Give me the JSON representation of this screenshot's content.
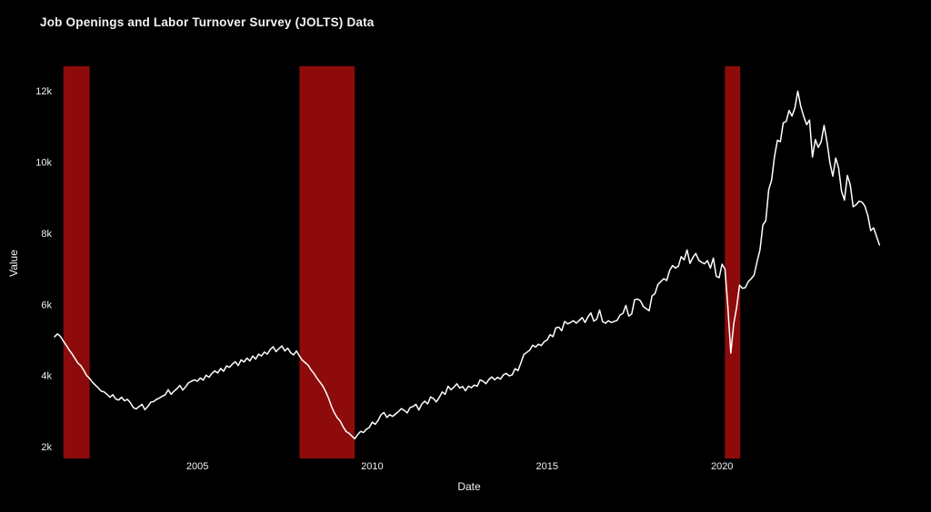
{
  "page": {
    "background": "#000000"
  },
  "chart_data": {
    "type": "line",
    "title": "Job Openings and Labor Turnover Survey (JOLTS) Data",
    "xlabel": "Date",
    "ylabel": "Value",
    "grid": false,
    "legend": false,
    "x_range": [
      2000.917,
      2024.96
    ],
    "y_range": [
      1670,
      12690
    ],
    "x_ticks": [
      {
        "value": 2005,
        "label": "2005"
      },
      {
        "value": 2010,
        "label": "2010"
      },
      {
        "value": 2015,
        "label": "2015"
      },
      {
        "value": 2020,
        "label": "2020"
      }
    ],
    "y_ticks": [
      {
        "value": 2000,
        "label": "2k"
      },
      {
        "value": 4000,
        "label": "4k"
      },
      {
        "value": 6000,
        "label": "6k"
      },
      {
        "value": 8000,
        "label": "8k"
      },
      {
        "value": 10000,
        "label": "10k"
      },
      {
        "value": 12000,
        "label": "12k"
      }
    ],
    "recession_bands": [
      {
        "from": 2001.17,
        "to": 2001.92
      },
      {
        "from": 2007.92,
        "to": 2009.5
      },
      {
        "from": 2020.08,
        "to": 2020.52
      }
    ],
    "colors": {
      "background": "#000000",
      "line": "#ffffff",
      "band": "#8e0b0b",
      "text": "#f2f2f2"
    },
    "series": {
      "name": "Value",
      "frequency": "monthly",
      "start_date": "2000-12",
      "x_start_numeric": 2000.9167,
      "values": [
        5090,
        5170,
        5100,
        4970,
        4850,
        4720,
        4610,
        4480,
        4350,
        4280,
        4150,
        4000,
        3920,
        3810,
        3730,
        3650,
        3560,
        3540,
        3470,
        3390,
        3460,
        3340,
        3310,
        3390,
        3290,
        3330,
        3240,
        3100,
        3060,
        3130,
        3190,
        3040,
        3130,
        3250,
        3270,
        3330,
        3370,
        3420,
        3460,
        3600,
        3470,
        3560,
        3630,
        3720,
        3590,
        3690,
        3800,
        3840,
        3880,
        3840,
        3930,
        3870,
        4010,
        3950,
        4060,
        4130,
        4070,
        4200,
        4120,
        4270,
        4230,
        4320,
        4390,
        4280,
        4440,
        4380,
        4490,
        4410,
        4550,
        4460,
        4600,
        4550,
        4660,
        4600,
        4730,
        4810,
        4670,
        4760,
        4830,
        4690,
        4770,
        4640,
        4580,
        4690,
        4550,
        4430,
        4360,
        4290,
        4160,
        4060,
        3930,
        3820,
        3710,
        3550,
        3360,
        3130,
        2950,
        2810,
        2720,
        2560,
        2430,
        2380,
        2300,
        2220,
        2340,
        2430,
        2400,
        2490,
        2540,
        2690,
        2630,
        2740,
        2900,
        2960,
        2820,
        2900,
        2850,
        2920,
        2990,
        3070,
        3020,
        2950,
        3100,
        3130,
        3190,
        3030,
        3200,
        3280,
        3200,
        3400,
        3350,
        3260,
        3390,
        3540,
        3470,
        3700,
        3600,
        3670,
        3770,
        3650,
        3690,
        3570,
        3700,
        3660,
        3730,
        3700,
        3880,
        3840,
        3770,
        3890,
        3960,
        3880,
        3950,
        3900,
        4020,
        4060,
        3990,
        4020,
        4190,
        4140,
        4360,
        4590,
        4650,
        4710,
        4850,
        4800,
        4880,
        4840,
        4950,
        5000,
        5150,
        5090,
        5340,
        5360,
        5260,
        5520,
        5450,
        5490,
        5540,
        5470,
        5550,
        5630,
        5490,
        5650,
        5760,
        5530,
        5580,
        5840,
        5520,
        5470,
        5540,
        5490,
        5520,
        5550,
        5700,
        5750,
        5970,
        5670,
        5730,
        6130,
        6150,
        6100,
        5940,
        5880,
        5820,
        6240,
        6300,
        6560,
        6640,
        6720,
        6670,
        6950,
        7090,
        7020,
        7070,
        7340,
        7250,
        7530,
        7150,
        7320,
        7430,
        7240,
        7180,
        7140,
        7230,
        7020,
        7300,
        6790,
        6750,
        7130,
        6990,
        5920,
        4630,
        5450,
        5910,
        6540,
        6450,
        6470,
        6640,
        6720,
        6820,
        7190,
        7530,
        8230,
        8350,
        9220,
        9490,
        10160,
        10610,
        10570,
        11100,
        11140,
        11450,
        11290,
        11520,
        11990,
        11570,
        11290,
        11050,
        11180,
        10140,
        10630,
        10410,
        10570,
        11030,
        10570,
        9980,
        9600,
        10110,
        9830,
        9180,
        8930,
        9620,
        9360,
        8740,
        8800,
        8900,
        8870,
        8760,
        8500,
        8070,
        8150,
        7910,
        7670
      ]
    }
  }
}
